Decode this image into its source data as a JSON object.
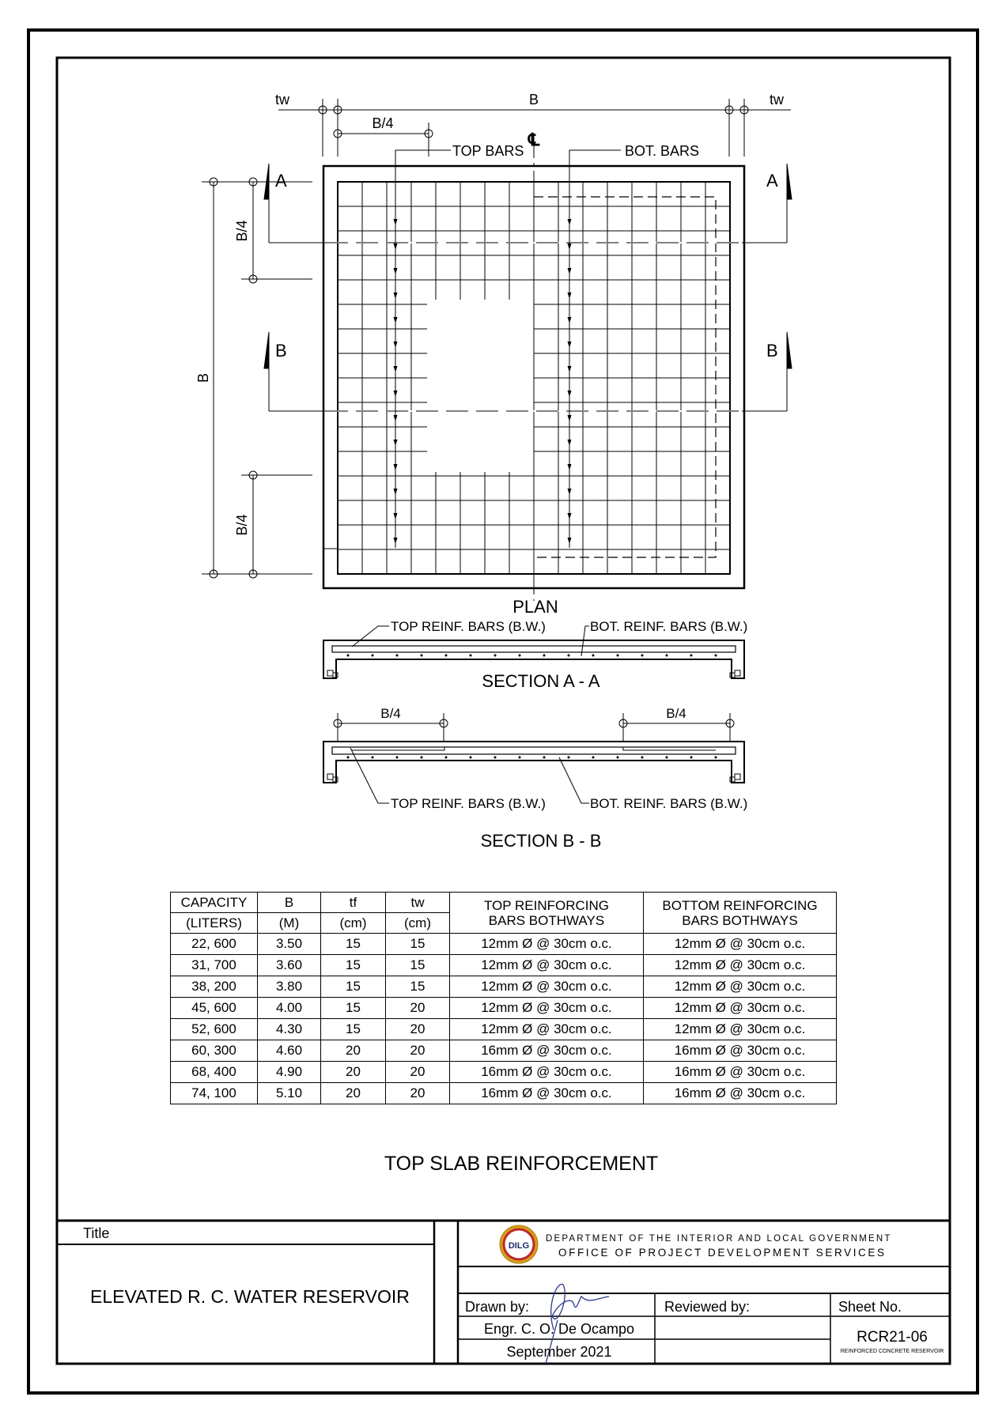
{
  "plan": {
    "dim_tw_left": "tw",
    "dim_b_top": "B",
    "dim_tw_right": "tw",
    "dim_b4_top": "B/4",
    "centerline": "℄",
    "top_bars": "TOP BARS",
    "bot_bars": "BOT. BARS",
    "sec_a_left": "A",
    "sec_a_right": "A",
    "sec_b_left": "B",
    "sec_b_right": "B",
    "dim_b_left": "B",
    "dim_b4_left_top": "B/4",
    "dim_b4_left_bottom": "B/4",
    "label": "PLAN"
  },
  "section_a": {
    "top_reinf": "TOP REINF. BARS (B.W.)",
    "bot_reinf": "BOT. REINF. BARS (B.W.)",
    "label": "SECTION A - A"
  },
  "section_b": {
    "dim_left": "B/4",
    "dim_right": "B/4",
    "top_reinf": "TOP REINF. BARS (B.W.)",
    "bot_reinf": "BOT. REINF. BARS (B.W.)",
    "label": "SECTION B - B"
  },
  "table": {
    "headers": [
      [
        "CAPACITY",
        "(LITERS)"
      ],
      [
        "B",
        "(M)"
      ],
      [
        "tf",
        "(cm)"
      ],
      [
        "tw",
        "(cm)"
      ],
      [
        "TOP REINFORCING",
        "BARS BOTHWAYS"
      ],
      [
        "BOTTOM REINFORCING",
        "BARS BOTHWAYS"
      ]
    ],
    "rows": [
      [
        "22, 600",
        "3.50",
        "15",
        "15",
        "12mm Ø @ 30cm o.c.",
        "12mm Ø @ 30cm o.c."
      ],
      [
        "31, 700",
        "3.60",
        "15",
        "15",
        "12mm Ø @ 30cm o.c.",
        "12mm Ø @ 30cm o.c."
      ],
      [
        "38, 200",
        "3.80",
        "15",
        "15",
        "12mm Ø @ 30cm o.c.",
        "12mm Ø @ 30cm o.c."
      ],
      [
        "45, 600",
        "4.00",
        "15",
        "20",
        "12mm Ø @ 30cm o.c.",
        "12mm Ø @ 30cm o.c."
      ],
      [
        "52, 600",
        "4.30",
        "15",
        "20",
        "12mm Ø @ 30cm o.c.",
        "12mm Ø @ 30cm o.c."
      ],
      [
        "60, 300",
        "4.60",
        "20",
        "20",
        "16mm Ø @ 30cm o.c.",
        "16mm Ø @ 30cm o.c."
      ],
      [
        "68, 400",
        "4.90",
        "20",
        "20",
        "16mm Ø @ 30cm o.c.",
        "16mm Ø @ 30cm o.c."
      ],
      [
        "74, 100",
        "5.10",
        "20",
        "20",
        "16mm Ø @ 30cm o.c.",
        "16mm Ø @ 30cm o.c."
      ]
    ]
  },
  "drawing_title": "TOP SLAB REINFORCEMENT",
  "title_block": {
    "title_label": "Title",
    "title_value": "ELEVATED R. C. WATER RESERVOIR",
    "logo_text": "DILG",
    "agency_line1": "DEPARTMENT OF THE INTERIOR AND LOCAL GOVERNMENT",
    "agency_line2": "OFFICE OF PROJECT DEVELOPMENT SERVICES",
    "drawn_by_label": "Drawn by:",
    "drawn_by_name": "Engr. C. O. De Ocampo",
    "drawn_date": "September 2021",
    "reviewed_by_label": "Reviewed by:",
    "sheet_no_label": "Sheet No.",
    "sheet_no": "RCR21-06",
    "sheet_caption": "REINFORCED CONCRETE RESERVOIR",
    "logo_colors": {
      "ring": "#d4a017",
      "inner": "#c0282d"
    }
  }
}
